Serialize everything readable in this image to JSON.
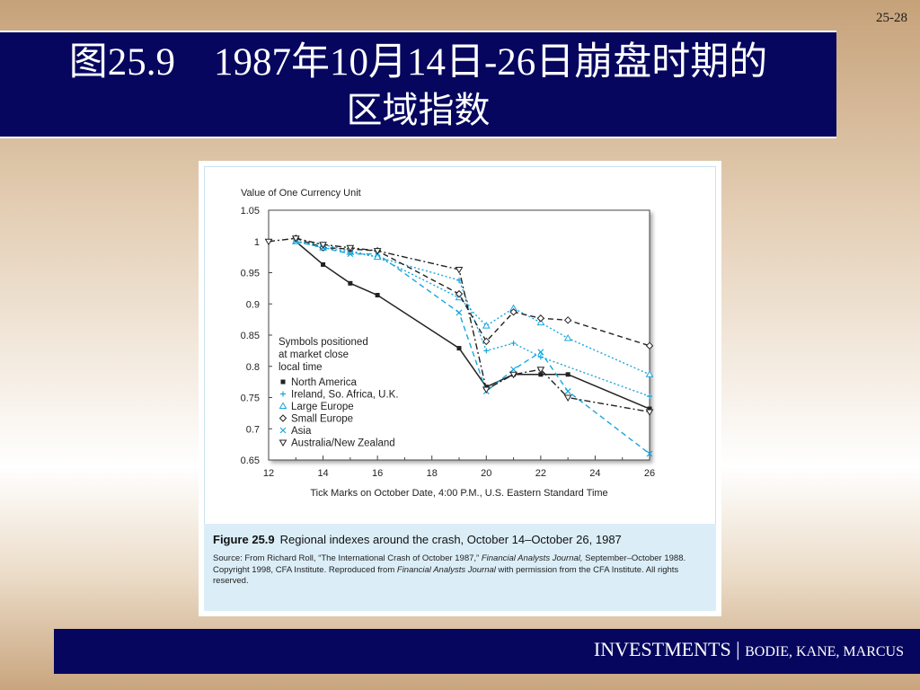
{
  "slide": {
    "page_number": "25-28",
    "title_line1": "图25.9    1987年10月14日-26日崩盘时期的",
    "title_line2": "区域指数",
    "footer_main": "INVESTMENTS | ",
    "footer_authors": "BODIE, KANE, MARCUS"
  },
  "figure": {
    "caption_label": "Figure 25.9",
    "caption_title": "Regional indexes around the crash, October 14–October 26, 1987",
    "source_part1": "Source: From Richard Roll, “The International Crash of October 1987,” ",
    "source_journal1": "Financial Analysts Journal,",
    "source_part2": " September–October 1988. Copyright 1998, CFA Institute. Reproduced from ",
    "source_journal2": "Financial Analysts Journal",
    "source_part3": " with permission from the CFA Institute. All rights reserved."
  },
  "colors": {
    "navy": "#06065f",
    "cyan": "#1ba7dc",
    "dark": "#222222"
  },
  "chart_data": {
    "type": "line",
    "ylabel": "Value of One Currency Unit",
    "xlabel": "Tick Marks on October Date, 4:00 P.M., U.S. Eastern Standard Time",
    "xlim": [
      12,
      26
    ],
    "ylim": [
      0.65,
      1.05
    ],
    "x_ticks": [
      12,
      14,
      16,
      18,
      20,
      22,
      24,
      26
    ],
    "y_ticks": [
      0.65,
      0.7,
      0.75,
      0.8,
      0.85,
      0.9,
      0.95,
      1,
      1.05
    ],
    "y_tick_labels": [
      "0.65",
      "0.7",
      "0.75",
      "0.8",
      "0.85",
      "0.9",
      "0.95",
      "1",
      "1.05"
    ],
    "grid": false,
    "legend_header": [
      "Symbols positioned",
      "at market close",
      "local time"
    ],
    "series": [
      {
        "name": "North America",
        "color": "#222222",
        "dash": "solid",
        "marker": "square",
        "x": [
          13,
          14,
          15,
          16,
          19,
          20,
          21,
          22,
          23,
          26
        ],
        "y": [
          1.0,
          0.963,
          0.933,
          0.914,
          0.829,
          0.767,
          0.787,
          0.787,
          0.787,
          0.732
        ]
      },
      {
        "name": "Ireland, So. Africa, U.K.",
        "color": "#1ba7dc",
        "dash": "dot",
        "marker": "plus",
        "x": [
          13,
          14,
          15,
          16,
          19,
          20,
          21,
          22,
          26
        ],
        "y": [
          1.0,
          0.995,
          0.985,
          0.975,
          0.938,
          0.825,
          0.837,
          0.815,
          0.752
        ]
      },
      {
        "name": "Large Europe",
        "color": "#1ba7dc",
        "dash": "dot",
        "marker": "triangle-up",
        "x": [
          13,
          14,
          15,
          16,
          19,
          20,
          21,
          22,
          23,
          26
        ],
        "y": [
          1.0,
          0.99,
          0.983,
          0.975,
          0.91,
          0.865,
          0.893,
          0.87,
          0.845,
          0.787
        ]
      },
      {
        "name": "Small Europe",
        "color": "#222222",
        "dash": "dash",
        "marker": "diamond",
        "x": [
          13,
          14,
          15,
          16,
          19,
          20,
          21,
          22,
          23,
          26
        ],
        "y": [
          1.005,
          0.99,
          0.988,
          0.985,
          0.916,
          0.84,
          0.887,
          0.877,
          0.874,
          0.833
        ]
      },
      {
        "name": "Asia",
        "color": "#1ba7dc",
        "dash": "dash",
        "marker": "x",
        "x": [
          13,
          14,
          15,
          16,
          19,
          20,
          21,
          22,
          23,
          26
        ],
        "y": [
          1.0,
          0.99,
          0.98,
          0.98,
          0.886,
          0.76,
          0.795,
          0.823,
          0.76,
          0.66
        ]
      },
      {
        "name": "Australia/New Zealand",
        "color": "#222222",
        "dash": "dashdot",
        "marker": "triangle-down",
        "x": [
          12,
          13,
          14,
          15,
          16,
          19,
          20,
          21,
          22,
          23,
          26
        ],
        "y": [
          1.0,
          1.005,
          0.995,
          0.99,
          0.985,
          0.955,
          0.763,
          0.787,
          0.795,
          0.75,
          0.727
        ]
      }
    ]
  }
}
